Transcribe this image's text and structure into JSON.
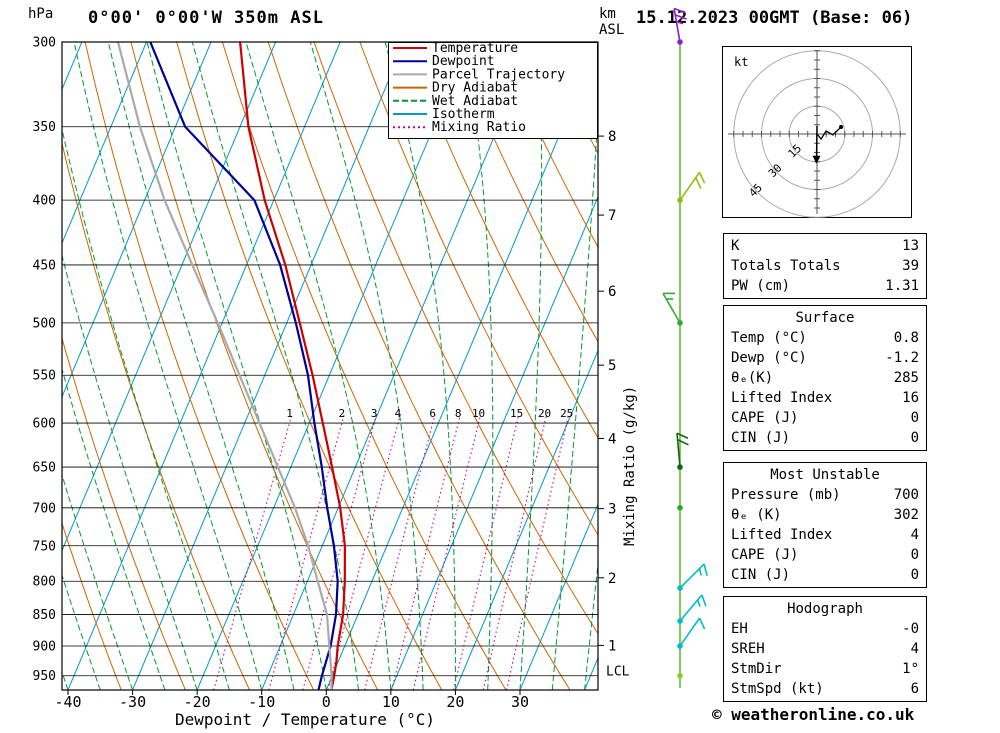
{
  "header": {
    "pressure_unit": "hPa",
    "station": "0°00' 0°00'W 350m ASL",
    "datetime": "15.12.2023 00GMT (Base: 06)",
    "km_label": "km",
    "asl_label": "ASL"
  },
  "footer": {
    "x_axis_label": "Dewpoint / Temperature (°C)",
    "copyright": "© weatheronline.co.uk"
  },
  "legend": [
    {
      "label": "Temperature",
      "color": "#cc0000",
      "style": "solid"
    },
    {
      "label": "Dewpoint",
      "color": "#000099",
      "style": "solid"
    },
    {
      "label": "Parcel Trajectory",
      "color": "#aaaaaa",
      "style": "solid"
    },
    {
      "label": "Dry Adiabat",
      "color": "#cc6600",
      "style": "solid"
    },
    {
      "label": "Wet Adiabat",
      "color": "#009933",
      "style": "dashed"
    },
    {
      "label": "Isotherm",
      "color": "#0099cc",
      "style": "solid"
    },
    {
      "label": "Mixing Ratio",
      "color": "#cc0088",
      "style": "dotted"
    }
  ],
  "axes": {
    "pressure_ticks": [
      300,
      350,
      400,
      450,
      500,
      550,
      600,
      650,
      700,
      750,
      800,
      850,
      900,
      950
    ],
    "temp_ticks": [
      -40,
      -30,
      -20,
      -10,
      0,
      10,
      20,
      30
    ],
    "km_ticks": [
      {
        "label": "8",
        "p": 356
      },
      {
        "label": "7",
        "p": 411
      },
      {
        "label": "6",
        "p": 472
      },
      {
        "label": "5",
        "p": 540
      },
      {
        "label": "4",
        "p": 617
      },
      {
        "label": "3",
        "p": 701
      },
      {
        "label": "2",
        "p": 795
      },
      {
        "label": "1",
        "p": 899
      }
    ],
    "lcl": {
      "label": "LCL",
      "p": 943
    },
    "mixing_ratio_axis_label": "Mixing Ratio (g/kg)",
    "mixing_ratio_values": [
      1,
      2,
      3,
      4,
      6,
      8,
      10,
      15,
      20,
      25
    ]
  },
  "colors": {
    "temperature": "#cc0000",
    "dewpoint": "#000099",
    "parcel": "#aaaaaa",
    "dry_adiabat": "#cc6600",
    "wet_adiabat": "#009933",
    "isotherm": "#0099cc",
    "mixing_ratio": "#cc0088",
    "isobar": "#000000",
    "wind_column": "#55bb22"
  },
  "chart_data": {
    "type": "line",
    "title": "Skew-T log-P sounding 0°00' 0°00'W 350m ASL 15.12.2023 00GMT",
    "xlabel": "Dewpoint / Temperature (°C)",
    "ylabel": "hPa",
    "x_range": [
      -40,
      42
    ],
    "pressure_range": [
      300,
      975
    ],
    "background": {
      "isotherms_c": {
        "min": -130,
        "max": 40,
        "step": 10
      },
      "dry_adiabats_theta_c": {
        "min": -40,
        "max": 140,
        "step": 10
      },
      "wet_adiabats_start_c": {
        "min": -55,
        "max": 45,
        "step": 5
      },
      "mixing_ratio_gkg": [
        1,
        2,
        3,
        4,
        6,
        8,
        10,
        15,
        20,
        25
      ]
    },
    "series": [
      {
        "name": "Temperature",
        "color": "#cc0000",
        "points": [
          [
            975,
            0.8
          ],
          [
            950,
            0.3
          ],
          [
            925,
            -0.3
          ],
          [
            900,
            -1.1
          ],
          [
            850,
            -2.3
          ],
          [
            800,
            -4.2
          ],
          [
            750,
            -6.5
          ],
          [
            700,
            -9.7
          ],
          [
            650,
            -13.6
          ],
          [
            600,
            -17.9
          ],
          [
            550,
            -22.6
          ],
          [
            500,
            -28.0
          ],
          [
            450,
            -34.0
          ],
          [
            400,
            -41.4
          ],
          [
            350,
            -48.7
          ],
          [
            300,
            -55.5
          ]
        ]
      },
      {
        "name": "Dewpoint",
        "color": "#000099",
        "points": [
          [
            975,
            -1.2
          ],
          [
            950,
            -1.6
          ],
          [
            900,
            -2.2
          ],
          [
            850,
            -3.4
          ],
          [
            800,
            -5.3
          ],
          [
            750,
            -8.2
          ],
          [
            700,
            -11.7
          ],
          [
            650,
            -15.2
          ],
          [
            600,
            -19.2
          ],
          [
            550,
            -23.3
          ],
          [
            500,
            -28.6
          ],
          [
            450,
            -34.8
          ],
          [
            400,
            -43.0
          ],
          [
            350,
            -58.5
          ],
          [
            300,
            -69.4
          ]
        ]
      },
      {
        "name": "Parcel Trajectory",
        "color": "#aaaaaa",
        "points": [
          [
            975,
            0.8
          ],
          [
            950,
            -0.1
          ],
          [
            900,
            -2.4
          ],
          [
            850,
            -4.8
          ],
          [
            800,
            -8.4
          ],
          [
            750,
            -12.2
          ],
          [
            700,
            -16.7
          ],
          [
            650,
            -22.0
          ],
          [
            600,
            -27.7
          ],
          [
            550,
            -33.9
          ],
          [
            500,
            -40.7
          ],
          [
            450,
            -48.4
          ],
          [
            400,
            -56.9
          ],
          [
            350,
            -65.5
          ],
          [
            300,
            -74.4
          ]
        ]
      }
    ],
    "winds": [
      {
        "p": 300,
        "spd": 25,
        "dir": 350,
        "color": "#8822cc"
      },
      {
        "p": 400,
        "spd": 20,
        "dir": 35,
        "color": "#99bb11"
      },
      {
        "p": 500,
        "spd": 15,
        "dir": 330,
        "color": "#33aa33"
      },
      {
        "p": 650,
        "spd": 20,
        "dir": 355,
        "color": "#116611"
      },
      {
        "p": 700,
        "spd": 0,
        "dir": 0,
        "color": "#22aa22"
      },
      {
        "p": 810,
        "spd": 15,
        "dir": 45,
        "color": "#00bbcc"
      },
      {
        "p": 860,
        "spd": 15,
        "dir": 40,
        "color": "#00bbcc"
      },
      {
        "p": 900,
        "spd": 10,
        "dir": 35,
        "color": "#00bbcc"
      },
      {
        "p": 950,
        "spd": 0,
        "dir": 0,
        "color": "#88cc22"
      }
    ]
  },
  "hodograph": {
    "unit_label": "kt",
    "rings_kt": [
      15,
      30,
      45
    ],
    "trace_kt": [
      [
        13,
        3.8
      ],
      [
        8.6,
        -0.5
      ],
      [
        4.9,
        1.6
      ],
      [
        2.2,
        -2.7
      ],
      [
        0,
        0
      ]
    ],
    "storm_dir_deg": 1,
    "storm_spd_kt": 6
  },
  "tables": [
    {
      "rows": [
        [
          "K",
          "13"
        ],
        [
          "Totals Totals",
          "39"
        ],
        [
          "PW (cm)",
          "1.31"
        ]
      ]
    },
    {
      "title": "Surface",
      "rows": [
        [
          "Temp (°C)",
          "0.8"
        ],
        [
          "Dewp (°C)",
          "-1.2"
        ],
        [
          "θₑ(K)",
          "285"
        ],
        [
          "Lifted Index",
          "16"
        ],
        [
          "CAPE (J)",
          "0"
        ],
        [
          "CIN (J)",
          "0"
        ]
      ]
    },
    {
      "title": "Most Unstable",
      "rows": [
        [
          "Pressure (mb)",
          "700"
        ],
        [
          "θₑ (K)",
          "302"
        ],
        [
          "Lifted Index",
          "4"
        ],
        [
          "CAPE (J)",
          "0"
        ],
        [
          "CIN (J)",
          "0"
        ]
      ]
    },
    {
      "title": "Hodograph",
      "rows": [
        [
          "EH",
          "-0"
        ],
        [
          "SREH",
          "4"
        ],
        [
          "StmDir",
          "1°"
        ],
        [
          "StmSpd (kt)",
          "6"
        ]
      ]
    }
  ]
}
